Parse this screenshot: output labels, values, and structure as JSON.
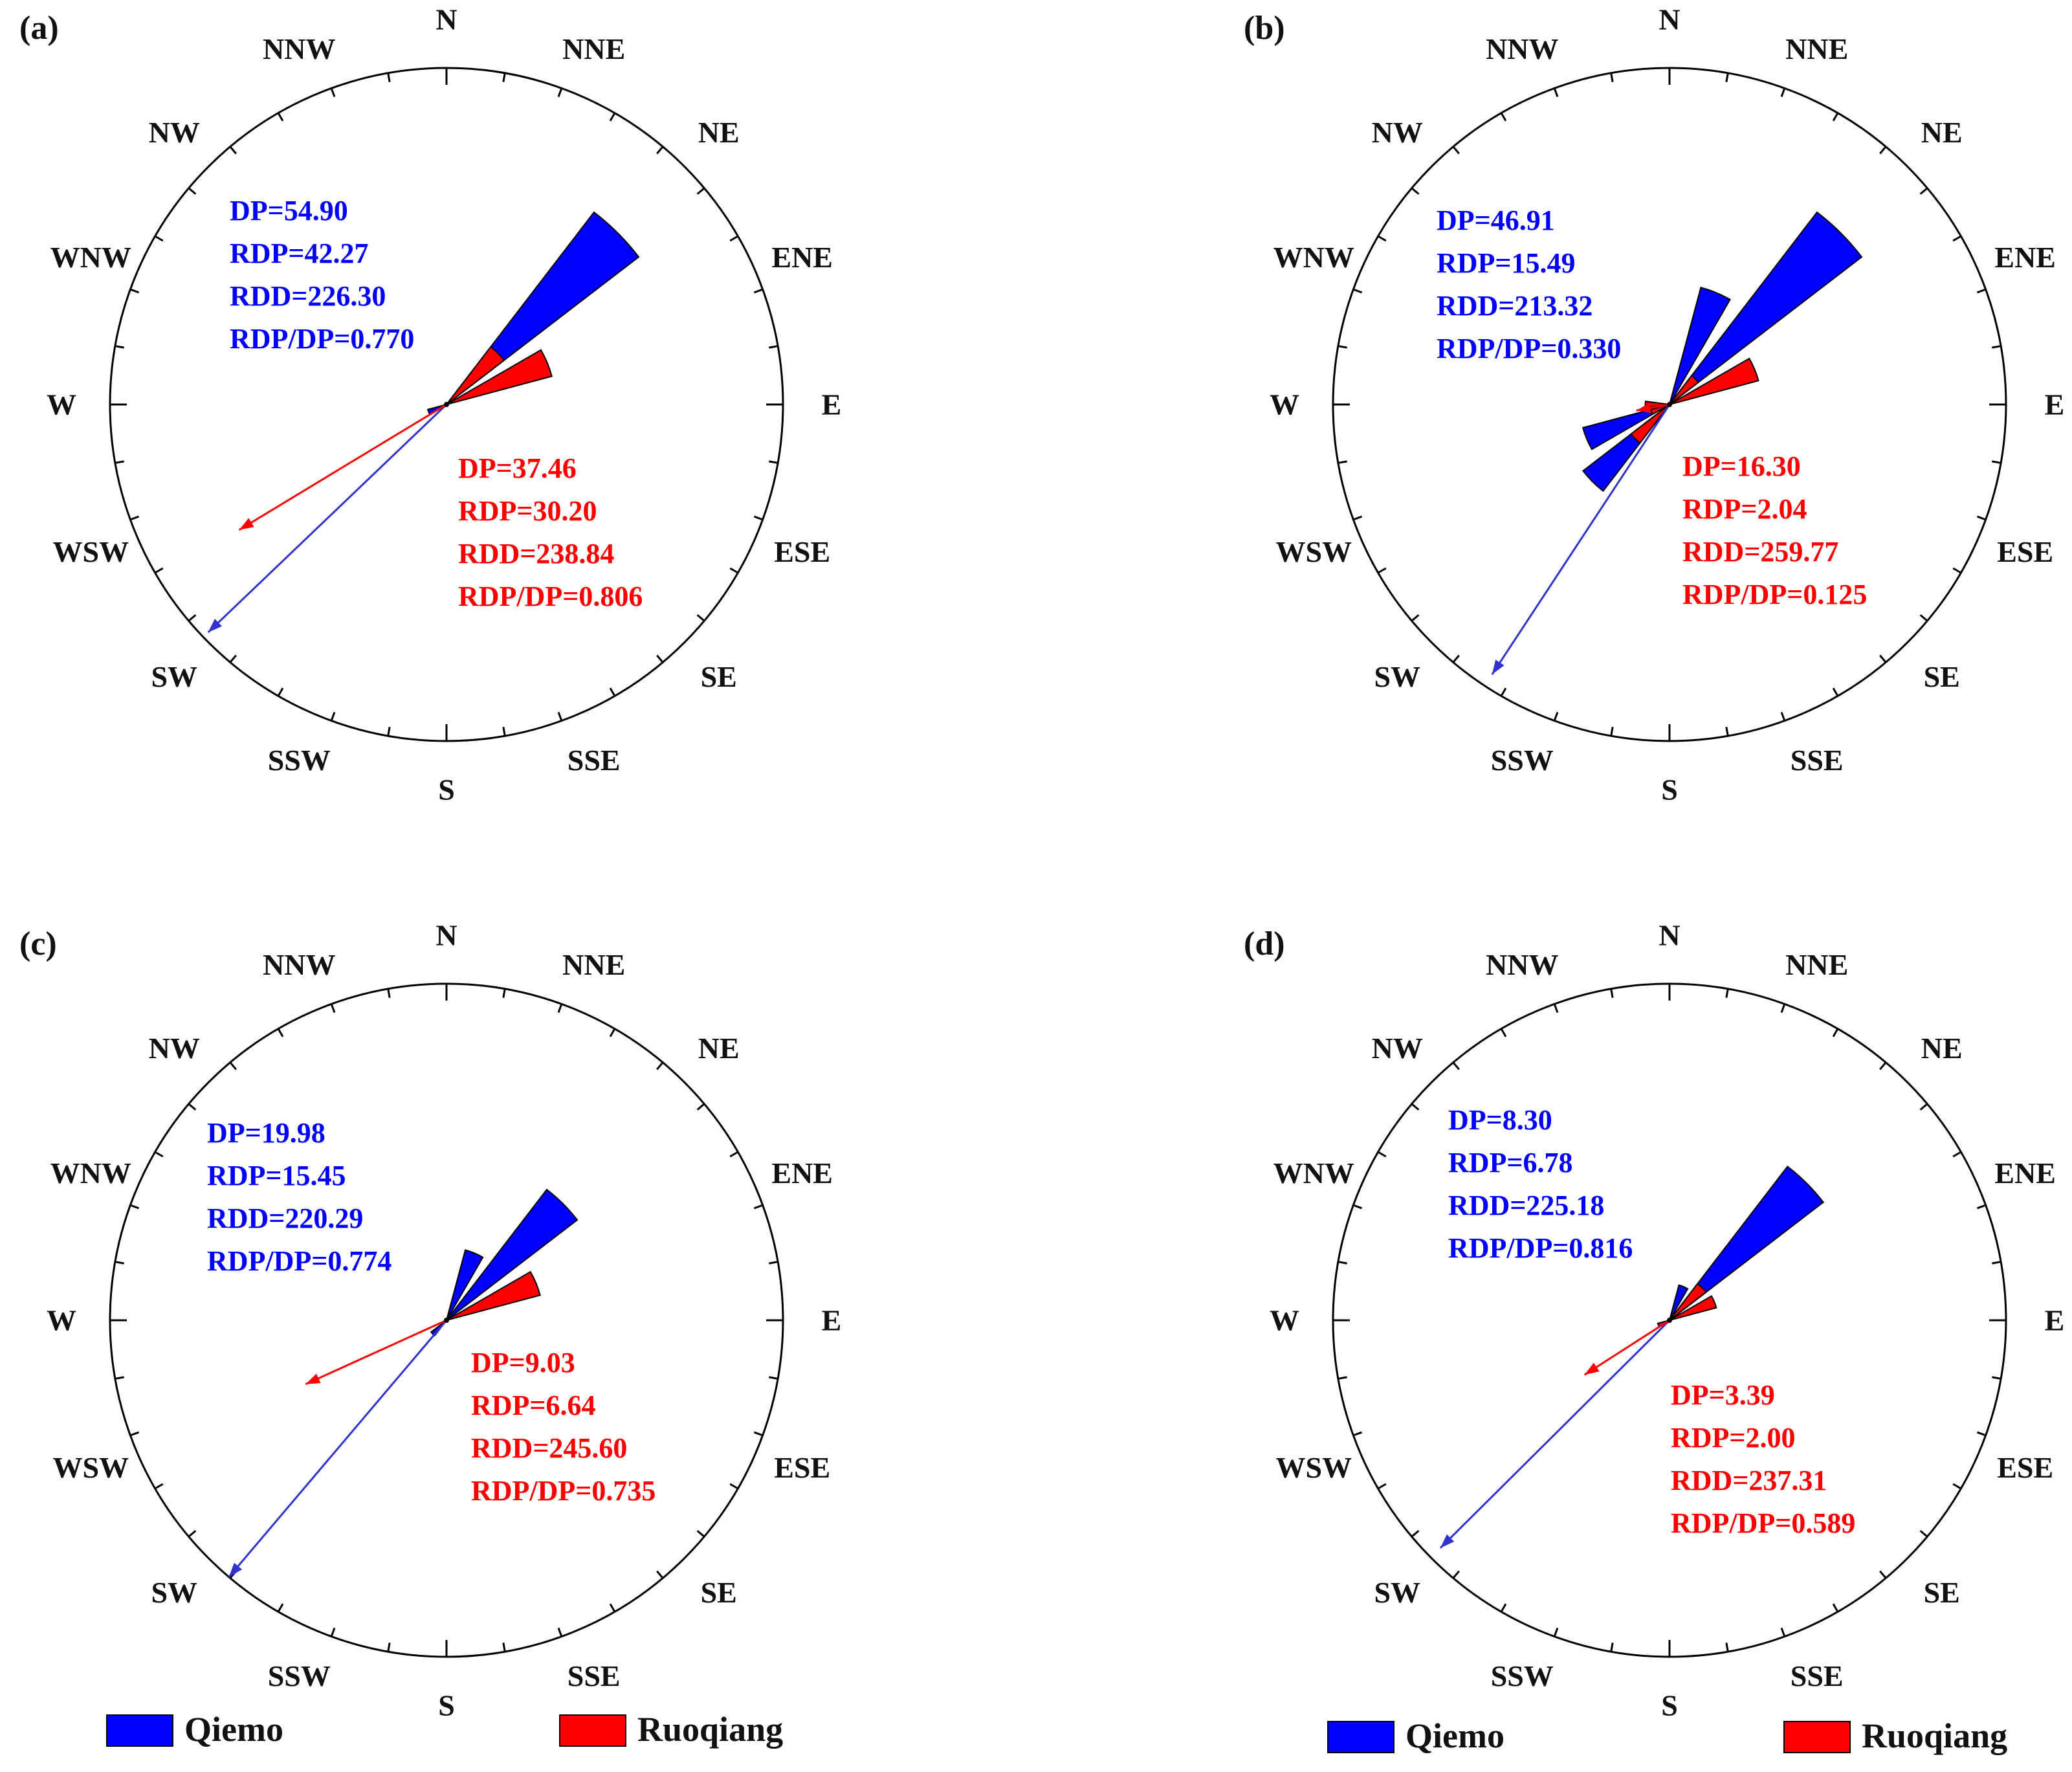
{
  "chart_data": [
    {
      "type": "rose",
      "panel": "(a)",
      "directions": [
        "N",
        "NNE",
        "NE",
        "ENE",
        "E",
        "ESE",
        "SE",
        "SSE",
        "S",
        "SSW",
        "SW",
        "WSW",
        "W",
        "WNW",
        "NW",
        "NNW"
      ],
      "series": [
        {
          "name": "Qiemo",
          "values": [
            0,
            0,
            1.0,
            0,
            0,
            0,
            0,
            0,
            0,
            0,
            0,
            0.08,
            0,
            0,
            0,
            0
          ]
        },
        {
          "name": "Ruoqiang",
          "values": [
            0,
            0,
            0.3,
            0.45,
            0,
            0,
            0,
            0,
            0,
            0,
            0,
            0,
            0,
            0,
            0,
            0
          ]
        }
      ],
      "rdd_arrows": [
        {
          "name": "Qiemo",
          "rdd_deg": 226.3,
          "length": 0.98
        },
        {
          "name": "Ruoqiang",
          "rdd_deg": 238.84,
          "length": 0.72
        }
      ],
      "stats": {
        "qiemo": [
          "DP=54.90",
          "RDP=42.27",
          "RDD=226.30",
          "RDP/DP=0.770"
        ],
        "ruoqiang": [
          "DP=37.46",
          "RDP=30.20",
          "RDD=238.84",
          "RDP/DP=0.806"
        ]
      }
    },
    {
      "type": "rose",
      "panel": "(b)",
      "directions": [
        "N",
        "NNE",
        "NE",
        "ENE",
        "E",
        "ESE",
        "SE",
        "SSE",
        "S",
        "SSW",
        "SW",
        "WSW",
        "W",
        "WNW",
        "NW",
        "NNW"
      ],
      "series": [
        {
          "name": "Qiemo",
          "values": [
            0,
            0.5,
            1.0,
            0,
            0,
            0,
            0,
            0,
            0,
            0,
            0.45,
            0.37,
            0,
            0,
            0,
            0
          ]
        },
        {
          "name": "Ruoqiang",
          "values": [
            0,
            0,
            0.15,
            0.38,
            0,
            0,
            0,
            0,
            0,
            0,
            0.2,
            0.08,
            0.1,
            0,
            0,
            0
          ]
        }
      ],
      "rdd_arrows": [
        {
          "name": "Qiemo",
          "rdd_deg": 213.32,
          "length": 0.96
        },
        {
          "name": "Ruoqiang",
          "rdd_deg": 259.77,
          "length": 0.1
        }
      ],
      "stats": {
        "qiemo": [
          "DP=46.91",
          "RDP=15.49",
          "RDD=213.32",
          "RDP/DP=0.330"
        ],
        "ruoqiang": [
          "DP=16.30",
          "RDP=2.04",
          "RDD=259.77",
          "RDP/DP=0.125"
        ]
      }
    },
    {
      "type": "rose",
      "panel": "(c)",
      "directions": [
        "N",
        "NNE",
        "NE",
        "ENE",
        "E",
        "ESE",
        "SE",
        "SSE",
        "S",
        "SSW",
        "SW",
        "WSW",
        "W",
        "WNW",
        "NW",
        "NNW"
      ],
      "series": [
        {
          "name": "Qiemo",
          "values": [
            0,
            0.3,
            0.68,
            0,
            0,
            0,
            0,
            0,
            0,
            0,
            0.08,
            0,
            0,
            0,
            0,
            0
          ]
        },
        {
          "name": "Ruoqiang",
          "values": [
            0,
            0,
            0,
            0.4,
            0,
            0,
            0,
            0,
            0,
            0,
            0,
            0,
            0,
            0,
            0,
            0
          ]
        }
      ],
      "rdd_arrows": [
        {
          "name": "Qiemo",
          "rdd_deg": 220.29,
          "length": 1.0
        },
        {
          "name": "Ruoqiang",
          "rdd_deg": 245.6,
          "length": 0.46
        }
      ],
      "stats": {
        "qiemo": [
          "DP=19.98",
          "RDP=15.45",
          "RDD=220.29",
          "RDP/DP=0.774"
        ],
        "ruoqiang": [
          "DP=9.03",
          "RDP=6.64",
          "RDD=245.60",
          "RDP/DP=0.735"
        ]
      }
    },
    {
      "type": "rose",
      "panel": "(d)",
      "directions": [
        "N",
        "NNE",
        "NE",
        "ENE",
        "E",
        "ESE",
        "SE",
        "SSE",
        "S",
        "SSW",
        "SW",
        "WSW",
        "W",
        "WNW",
        "NW",
        "NNW"
      ],
      "series": [
        {
          "name": "Qiemo",
          "values": [
            0,
            0.15,
            0.8,
            0,
            0,
            0,
            0,
            0,
            0,
            0,
            0,
            0,
            0,
            0,
            0,
            0
          ]
        },
        {
          "name": "Ruoqiang",
          "values": [
            0,
            0,
            0.19,
            0.2,
            0,
            0,
            0,
            0,
            0,
            0,
            0,
            0.05,
            0,
            0,
            0,
            0
          ]
        }
      ],
      "rdd_arrows": [
        {
          "name": "Qiemo",
          "rdd_deg": 225.18,
          "length": 0.96
        },
        {
          "name": "Ruoqiang",
          "rdd_deg": 237.31,
          "length": 0.3
        }
      ],
      "stats": {
        "qiemo": [
          "DP=8.30",
          "RDP=6.78",
          "RDD=225.18",
          "RDP/DP=0.816"
        ],
        "ruoqiang": [
          "DP=3.39",
          "RDP=2.00",
          "RDD=237.31",
          "RDP/DP=0.589"
        ]
      }
    }
  ],
  "legend": [
    {
      "name": "Qiemo",
      "color": "#0000ff"
    },
    {
      "name": "Ruoqiang",
      "color": "#ff0000"
    }
  ],
  "colors": {
    "qiemo": "#0000ff",
    "ruoqiang": "#ff0000",
    "axis": "#000000",
    "qiemo_arrow": "#3232cc"
  }
}
